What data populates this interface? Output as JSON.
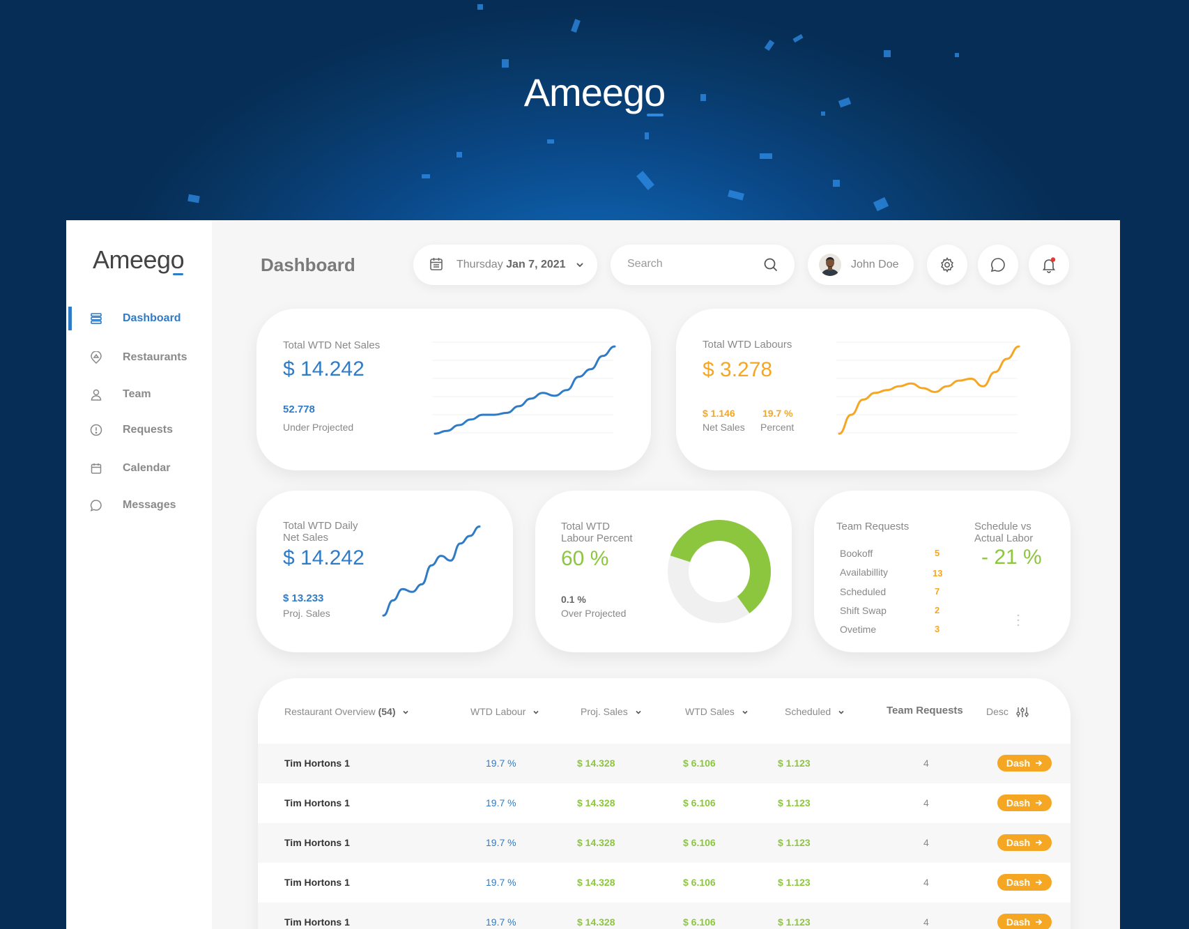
{
  "brand": {
    "hero_logo_text": "Ameego",
    "sidebar_logo_text": "Ameego",
    "accent_color": "#2f7bc6",
    "orange": "#f5a623",
    "green": "#8cc63f"
  },
  "sidebar": {
    "items": [
      {
        "label": "Dashboard",
        "icon": "dashboard-icon",
        "active": true
      },
      {
        "label": "Restaurants",
        "icon": "location-icon",
        "active": false
      },
      {
        "label": "Team",
        "icon": "user-icon",
        "active": false
      },
      {
        "label": "Requests",
        "icon": "alert-circle-icon",
        "active": false
      },
      {
        "label": "Calendar",
        "icon": "calendar-icon",
        "active": false
      },
      {
        "label": "Messages",
        "icon": "chat-icon",
        "active": false
      }
    ]
  },
  "header": {
    "title": "Dashboard",
    "date_weekday": "Thursday",
    "date_value": "Jan 7, 2021",
    "search_placeholder": "Search",
    "user_name": "John Doe"
  },
  "cards": {
    "net_sales": {
      "title": "Total WTD Net Sales",
      "value": "$ 14.242",
      "sub_value": "52.778",
      "sub_label": "Under Projected",
      "trend": [
        2,
        5,
        11,
        17,
        22,
        22,
        24,
        31,
        39,
        45,
        42,
        48,
        62,
        70,
        84,
        94
      ]
    },
    "labours": {
      "title": "Total WTD Labours",
      "value": "$ 3.278",
      "net_value": "$ 1.146",
      "net_label": "Net Sales",
      "percent_value": "19.7 %",
      "percent_label": "Percent",
      "trend": [
        2,
        22,
        38,
        45,
        48,
        52,
        55,
        50,
        46,
        52,
        58,
        60,
        52,
        67,
        81,
        94
      ]
    },
    "daily": {
      "title_line1": "Total WTD Daily",
      "title_line2": "Net Sales",
      "value": "$ 14.242",
      "sub_value": "$ 13.233",
      "sub_label": "Proj. Sales",
      "trend": [
        2,
        18,
        30,
        27,
        35,
        55,
        65,
        60,
        78,
        86,
        96
      ]
    },
    "labour_percent": {
      "title_line1": "Total WTD",
      "title_line2": "Labour Percent",
      "value": "60 %",
      "percent": 60,
      "sub_value": "0.1 %",
      "sub_label": "Over Projected"
    },
    "team_requests": {
      "title": "Team Requests",
      "rows": [
        {
          "label": "Bookoff",
          "value": "5"
        },
        {
          "label": "Availabillity",
          "value": "13"
        },
        {
          "label": "Scheduled",
          "value": "7"
        },
        {
          "label": "Shift Swap",
          "value": "2"
        },
        {
          "label": "Ovetime",
          "value": "3"
        }
      ],
      "schedule_title_line1": "Schedule vs",
      "schedule_title_line2": "Actual Labor",
      "schedule_value": "- 21 %"
    }
  },
  "table": {
    "columns": {
      "overview_label": "Restaurant Overview",
      "overview_count": "(54)",
      "labour": "WTD Labour",
      "proj": "Proj. Sales",
      "wtd": "WTD Sales",
      "scheduled": "Scheduled",
      "requests": "Team Requests",
      "desc": "Desc"
    },
    "rows": [
      {
        "name": "Tim Hortons 1",
        "labour": "19.7 %",
        "proj": "$ 14.328",
        "wtd": "$ 6.106",
        "scheduled": "$ 1.123",
        "requests": "4",
        "action": "Dash"
      },
      {
        "name": "Tim Hortons 1",
        "labour": "19.7 %",
        "proj": "$ 14.328",
        "wtd": "$ 6.106",
        "scheduled": "$ 1.123",
        "requests": "4",
        "action": "Dash"
      },
      {
        "name": "Tim Hortons 1",
        "labour": "19.7 %",
        "proj": "$ 14.328",
        "wtd": "$ 6.106",
        "scheduled": "$ 1.123",
        "requests": "4",
        "action": "Dash"
      },
      {
        "name": "Tim Hortons 1",
        "labour": "19.7 %",
        "proj": "$ 14.328",
        "wtd": "$ 6.106",
        "scheduled": "$ 1.123",
        "requests": "4",
        "action": "Dash"
      },
      {
        "name": "Tim Hortons 1",
        "labour": "19.7 %",
        "proj": "$ 14.328",
        "wtd": "$ 6.106",
        "scheduled": "$ 1.123",
        "requests": "4",
        "action": "Dash"
      }
    ]
  }
}
